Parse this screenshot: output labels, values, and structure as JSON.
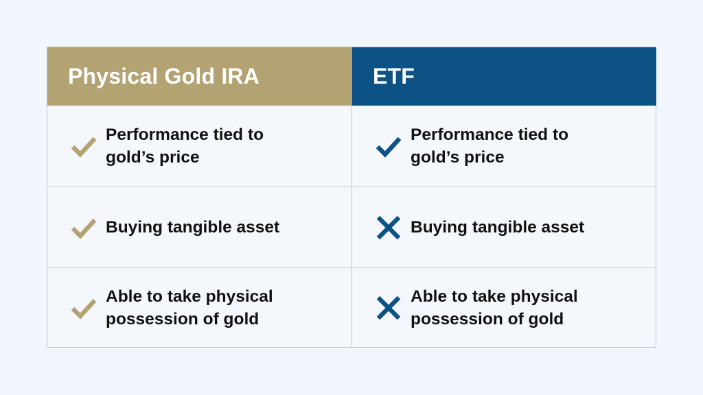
{
  "colors": {
    "background": "#f1f6fc",
    "gold": "#b3a272",
    "blue": "#0d5284",
    "border": "#bfc6cf",
    "text": "#111111"
  },
  "columns": [
    {
      "header": "Physical Gold IRA",
      "rows": [
        {
          "icon": "check-icon",
          "text": "Performance tied to gold’s price"
        },
        {
          "icon": "check-icon",
          "text": "Buying tangible asset"
        },
        {
          "icon": "check-icon",
          "text": "Able to take physical possession of gold"
        }
      ]
    },
    {
      "header": "ETF",
      "rows": [
        {
          "icon": "check-icon",
          "text": "Performance tied to gold’s price"
        },
        {
          "icon": "x-icon",
          "text": "Buying tangible asset"
        },
        {
          "icon": "x-icon",
          "text": "Able to take physical possession of gold"
        }
      ]
    }
  ]
}
